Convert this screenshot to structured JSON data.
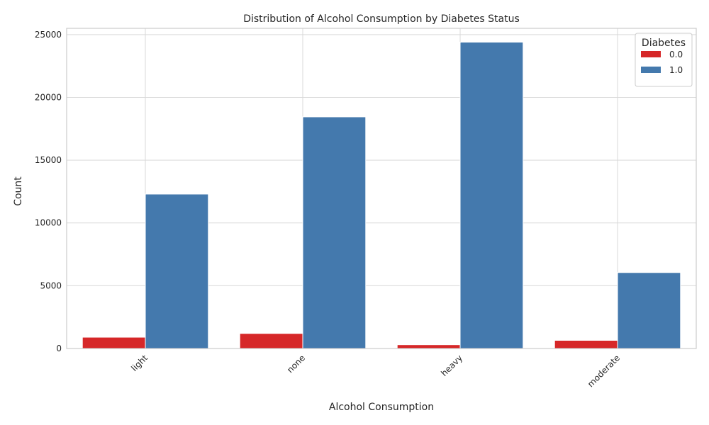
{
  "chart_data": {
    "type": "bar",
    "title": "Distribution of Alcohol Consumption by Diabetes Status",
    "xlabel": "Alcohol Consumption",
    "ylabel": "Count",
    "categories": [
      "light",
      "none",
      "heavy",
      "moderate"
    ],
    "series": [
      {
        "name": "0.0",
        "values": [
          900,
          1200,
          300,
          650
        ],
        "color": "#d62728"
      },
      {
        "name": "1.0",
        "values": [
          12300,
          18450,
          24400,
          6050
        ],
        "color": "#4479ad"
      }
    ],
    "ylim": [
      0,
      25500
    ],
    "yticks": [
      0,
      5000,
      10000,
      15000,
      20000,
      25000
    ],
    "legend": {
      "title": "Diabetes",
      "position": "top-right"
    },
    "grid": true,
    "xtick_rotation": -45
  }
}
